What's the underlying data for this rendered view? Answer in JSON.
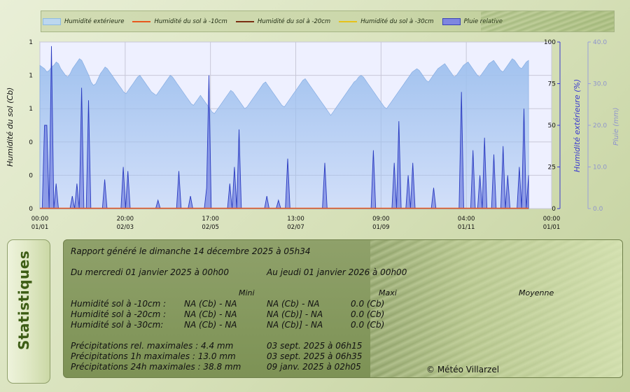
{
  "legend": {
    "items": [
      {
        "label": "Humidité extérieure",
        "kind": "area",
        "color": "#8fbce0"
      },
      {
        "label": "Humidité du sol à -10cm",
        "kind": "line",
        "color": "#e8581c"
      },
      {
        "label": "Humidité du sol à -20cm",
        "kind": "line",
        "color": "#7a2e12"
      },
      {
        "label": "Humidité du sol à -30cm",
        "kind": "line",
        "color": "#e6c21a"
      },
      {
        "label": "Pluie relative",
        "kind": "area",
        "color": "#5a66d8"
      }
    ]
  },
  "axes": {
    "left_title": "Humidité du sol (Cb)",
    "right1_title": "Humidité extérieure (%)",
    "right2_title": "Pluie (mm)"
  },
  "chart_data": {
    "type": "area",
    "x_ticks": [
      {
        "time": "00:00",
        "date": "01/01"
      },
      {
        "time": "20:00",
        "date": "02/03"
      },
      {
        "time": "17:00",
        "date": "02/05"
      },
      {
        "time": "13:00",
        "date": "02/07"
      },
      {
        "time": "09:00",
        "date": "01/09"
      },
      {
        "time": "04:00",
        "date": "01/11"
      },
      {
        "time": "00:00",
        "date": "01/01"
      }
    ],
    "left_ticks": [
      "0",
      "0",
      "0",
      "1",
      "1",
      "1"
    ],
    "right1_ticks": [
      "0",
      "25",
      "50",
      "75",
      "100"
    ],
    "right1_ylim": [
      0,
      100
    ],
    "right2_ticks": [
      "0.0",
      "10.0",
      "20.0",
      "30.0",
      "40.0"
    ],
    "right2_ylim": [
      0,
      40
    ],
    "series": [
      {
        "name": "Humidité extérieure",
        "axis": "right1",
        "values": [
          86,
          85,
          84,
          82,
          83,
          85,
          86,
          88,
          87,
          84,
          82,
          80,
          79,
          81,
          84,
          86,
          88,
          90,
          89,
          86,
          83,
          80,
          76,
          74,
          75,
          78,
          81,
          83,
          85,
          84,
          82,
          80,
          78,
          76,
          74,
          72,
          70,
          69,
          71,
          73,
          75,
          77,
          79,
          80,
          78,
          76,
          74,
          72,
          70,
          69,
          68,
          70,
          72,
          74,
          76,
          78,
          80,
          79,
          77,
          75,
          73,
          71,
          69,
          67,
          65,
          63,
          62,
          64,
          66,
          68,
          66,
          64,
          62,
          60,
          58,
          57,
          59,
          61,
          63,
          65,
          67,
          69,
          71,
          70,
          68,
          66,
          64,
          62,
          60,
          61,
          63,
          65,
          67,
          69,
          71,
          73,
          75,
          76,
          74,
          72,
          70,
          68,
          66,
          64,
          62,
          61,
          63,
          65,
          67,
          69,
          71,
          73,
          75,
          77,
          78,
          76,
          74,
          72,
          70,
          68,
          66,
          64,
          62,
          60,
          58,
          56,
          58,
          60,
          62,
          64,
          66,
          68,
          70,
          72,
          74,
          76,
          77,
          79,
          80,
          79,
          77,
          75,
          73,
          71,
          69,
          67,
          65,
          63,
          61,
          60,
          62,
          64,
          66,
          68,
          70,
          72,
          74,
          76,
          78,
          80,
          82,
          83,
          84,
          83,
          81,
          79,
          77,
          76,
          78,
          80,
          82,
          84,
          85,
          86,
          87,
          85,
          83,
          81,
          79,
          80,
          82,
          84,
          86,
          87,
          88,
          86,
          84,
          82,
          80,
          79,
          81,
          83,
          85,
          87,
          88,
          89,
          87,
          85,
          83,
          82,
          84,
          86,
          88,
          90,
          89,
          87,
          85,
          84,
          86,
          88,
          89
        ]
      },
      {
        "name": "Pluie relative",
        "axis": "right2",
        "values": [
          0,
          0,
          20,
          20,
          0,
          39,
          0,
          6,
          0,
          0,
          0,
          0,
          0,
          0,
          3,
          0,
          6,
          0,
          29,
          0,
          0,
          26,
          0,
          0,
          0,
          0,
          0,
          0,
          7,
          0,
          0,
          0,
          0,
          0,
          0,
          0,
          10,
          0,
          9,
          0,
          0,
          0,
          0,
          0,
          0,
          0,
          0,
          0,
          0,
          0,
          0,
          2,
          0,
          0,
          0,
          0,
          0,
          0,
          0,
          0,
          9,
          0,
          0,
          0,
          0,
          3,
          0,
          0,
          0,
          0,
          0,
          0,
          5,
          32,
          0,
          0,
          0,
          0,
          0,
          0,
          0,
          0,
          6,
          0,
          10,
          0,
          19,
          0,
          0,
          0,
          0,
          0,
          0,
          0,
          0,
          0,
          0,
          0,
          3,
          0,
          0,
          0,
          0,
          2,
          0,
          0,
          0,
          12,
          0,
          0,
          0,
          0,
          0,
          0,
          0,
          0,
          0,
          0,
          0,
          0,
          0,
          0,
          0,
          11,
          0,
          0,
          0,
          0,
          0,
          0,
          0,
          0,
          0,
          0,
          0,
          0,
          0,
          0,
          0,
          0,
          0,
          0,
          0,
          0,
          14,
          0,
          0,
          0,
          0,
          0,
          0,
          0,
          0,
          11,
          0,
          21,
          0,
          0,
          0,
          8,
          0,
          11,
          0,
          0,
          0,
          0,
          0,
          0,
          0,
          0,
          5,
          0,
          0,
          0,
          0,
          0,
          0,
          0,
          0,
          0,
          0,
          0,
          28,
          0,
          0,
          0,
          0,
          14,
          0,
          0,
          8,
          0,
          17,
          0,
          0,
          0,
          13,
          0,
          0,
          0,
          15,
          0,
          8,
          0,
          0,
          0,
          0,
          10,
          0,
          24,
          0,
          8
        ]
      },
      {
        "name": "Humidité du sol à -10cm",
        "axis": "left",
        "values": []
      },
      {
        "name": "Humidité du sol à -20cm",
        "axis": "left",
        "values": []
      },
      {
        "name": "Humidité du sol à -30cm",
        "axis": "left",
        "values": []
      }
    ]
  },
  "colors": {
    "humidity_fill": "#9ec0ee",
    "rain_fill": "#5a66d8",
    "rain_stroke": "#2a3bc0",
    "plot_bg": "#eef0ff",
    "grid": "#c8c8d8",
    "right1_axis": "#3a3ad0",
    "right2_axis": "#9aa0d8",
    "soil_line": "#e8581c"
  },
  "stats": {
    "tab_label": "Statistiques",
    "report_line": "Rapport généré le dimanche 14 décembre 2025 à 05h34",
    "period_from": "Du mercredi 01 janvier 2025 à 00h00",
    "period_to": "Au jeudi 01 janvier 2026 à 00h00",
    "header_mini": "Mini",
    "header_maxi": "Maxi",
    "header_moyenne": "Moyenne",
    "rows": [
      {
        "label": "Humidité sol à -10cm :",
        "mini": "NA (Cb) - NA",
        "maxi": "NA (Cb) - NA",
        "moyenne": "0.0 (Cb)"
      },
      {
        "label": "Humidité sol à -20cm :",
        "mini": "NA (Cb) - NA",
        "maxi": "NA (Cb)] - NA",
        "moyenne": "0.0 (Cb)"
      },
      {
        "label": "Humidité sol à -30cm:",
        "mini": "NA (Cb) - NA",
        "maxi": "NA (Cb)] - NA",
        "moyenne": "0.0 (Cb)"
      }
    ],
    "precip": [
      {
        "label": "Précipitations rel. maximales : 4.4 mm",
        "date": "03 sept. 2025 à 06h15"
      },
      {
        "label": "Précipitations 1h maximales : 13.0 mm",
        "date": "03 sept. 2025 à 06h35"
      },
      {
        "label": "Précipitations 24h maximales : 38.8 mm",
        "date": "09 janv. 2025 à 02h05"
      }
    ],
    "copyright": "© Météo Villarzel"
  }
}
